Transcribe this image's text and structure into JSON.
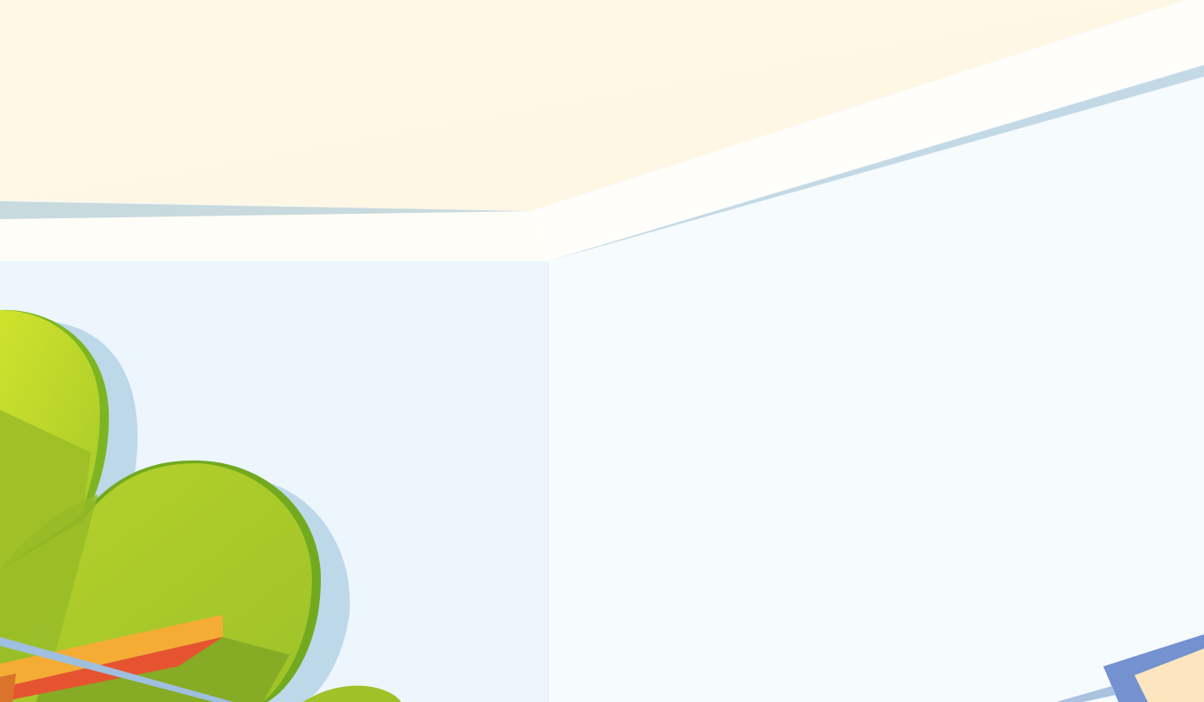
{
  "scene": {
    "description_visible_text": "",
    "colors": {
      "ceiling": "#fff7e8",
      "ceiling_light": "#fffcf2",
      "cornice": "#fffdf8",
      "cornice_shadow": "#c7dbe4",
      "left_wall": "#edf6fd",
      "right_wall": "#f6fbfe",
      "plant_light": "#c9e02c",
      "plant_mid": "#a8c82a",
      "plant_dark": "#88ad24",
      "plant_edge": "#6fa61e",
      "plant_shadow": "#bcd8e8",
      "bench_top": "#f6ae36",
      "bench_side": "#e85332",
      "bench_front": "#d84a2a",
      "rail": "#9fbfdf",
      "frame_blue": "#7592d2",
      "frame_inner": "#fde7bf"
    },
    "icons": [
      "potted-plant-icon",
      "bench-icon",
      "picture-frame-icon"
    ]
  }
}
